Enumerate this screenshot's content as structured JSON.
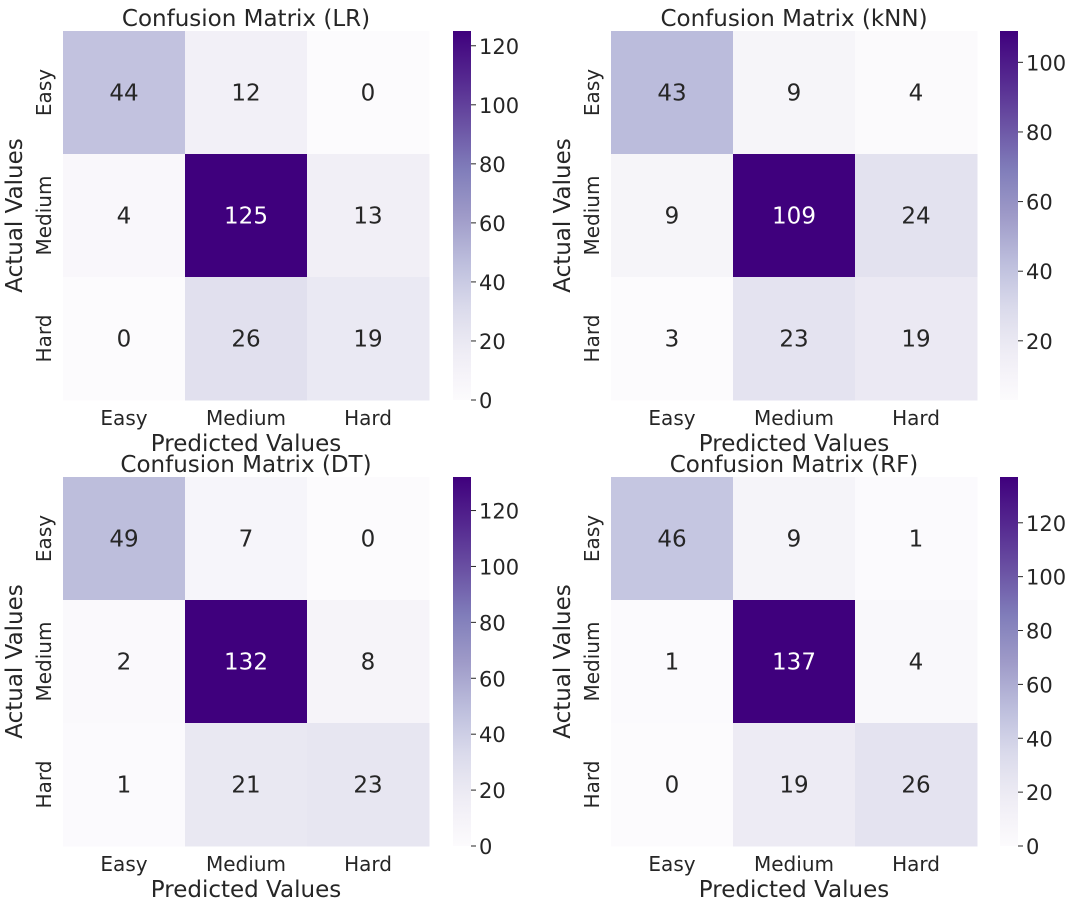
{
  "chart_data": [
    {
      "type": "heatmap",
      "title": "Confusion Matrix (LR)",
      "xlabel": "Predicted Values",
      "ylabel": "Actual Values",
      "x_categories": [
        "Easy",
        "Medium",
        "Hard"
      ],
      "y_categories": [
        "Easy",
        "Medium",
        "Hard"
      ],
      "values": [
        [
          44,
          12,
          0
        ],
        [
          4,
          125,
          13
        ],
        [
          0,
          26,
          19
        ]
      ],
      "colorbar": {
        "min": 0,
        "max": 125,
        "ticks": [
          0,
          20,
          40,
          60,
          80,
          100,
          120
        ]
      },
      "colormap": "Purples"
    },
    {
      "type": "heatmap",
      "title": "Confusion Matrix (kNN)",
      "xlabel": "Predicted Values",
      "ylabel": "Actual Values",
      "x_categories": [
        "Easy",
        "Medium",
        "Hard"
      ],
      "y_categories": [
        "Easy",
        "Medium",
        "Hard"
      ],
      "values": [
        [
          43,
          9,
          4
        ],
        [
          9,
          109,
          24
        ],
        [
          3,
          23,
          19
        ]
      ],
      "colorbar": {
        "min": 3,
        "max": 109,
        "ticks": [
          20,
          40,
          60,
          80,
          100
        ]
      },
      "colormap": "Purples"
    },
    {
      "type": "heatmap",
      "title": "Confusion Matrix (DT)",
      "xlabel": "Predicted Values",
      "ylabel": "Actual Values",
      "x_categories": [
        "Easy",
        "Medium",
        "Hard"
      ],
      "y_categories": [
        "Easy",
        "Medium",
        "Hard"
      ],
      "values": [
        [
          49,
          7,
          0
        ],
        [
          2,
          132,
          8
        ],
        [
          1,
          21,
          23
        ]
      ],
      "colorbar": {
        "min": 0,
        "max": 132,
        "ticks": [
          0,
          20,
          40,
          60,
          80,
          100,
          120
        ]
      },
      "colormap": "Purples"
    },
    {
      "type": "heatmap",
      "title": "Confusion Matrix (RF)",
      "xlabel": "Predicted Values",
      "ylabel": "Actual Values",
      "x_categories": [
        "Easy",
        "Medium",
        "Hard"
      ],
      "y_categories": [
        "Easy",
        "Medium",
        "Hard"
      ],
      "values": [
        [
          46,
          9,
          1
        ],
        [
          1,
          137,
          4
        ],
        [
          0,
          19,
          26
        ]
      ],
      "colorbar": {
        "min": 0,
        "max": 137,
        "ticks": [
          0,
          20,
          40,
          60,
          80,
          100,
          120
        ]
      },
      "colormap": "Purples"
    }
  ]
}
